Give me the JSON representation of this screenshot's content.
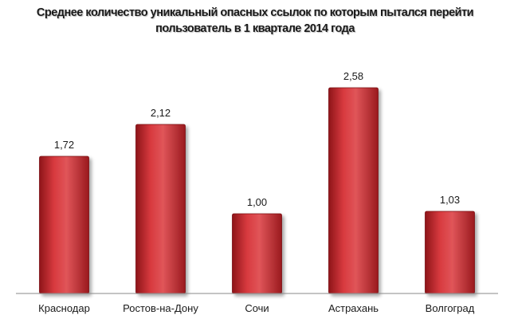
{
  "title_line1": "Среднее количество уникальный опасных ссылок по которым пытался перейти",
  "title_line2": "пользователь в 1 квартале 2014 года",
  "chart_data": {
    "type": "bar",
    "categories": [
      "Краснодар",
      "Ростов-на-Дону",
      "Сочи",
      "Астрахань",
      "Волгоград"
    ],
    "values": [
      1.72,
      2.12,
      1.0,
      2.58,
      1.03
    ],
    "value_labels": [
      "1,72",
      "2,12",
      "1,00",
      "2,58",
      "1,03"
    ],
    "ylim": [
      0,
      3
    ],
    "grid": false,
    "legend": "none",
    "bar_color": "#c0282d",
    "bar_highlight": "#e56060"
  }
}
